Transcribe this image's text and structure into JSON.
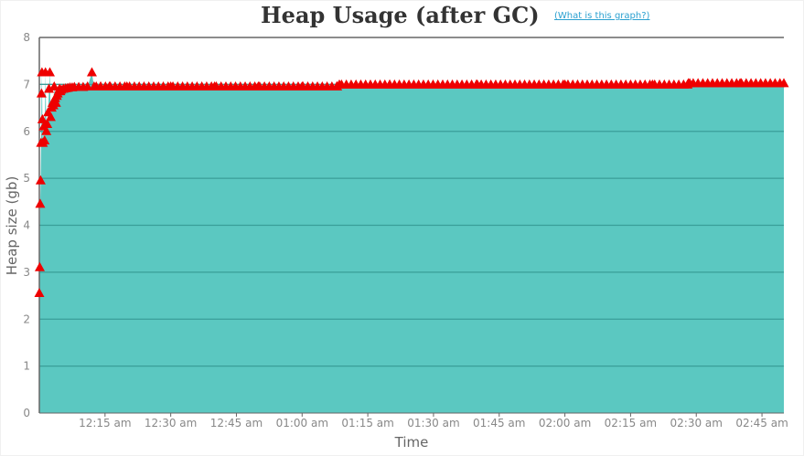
{
  "header": {
    "title": "Heap Usage (after GC)",
    "help_link": "(What is this graph?)"
  },
  "chart_data": {
    "type": "area",
    "title": "Heap Usage (after GC)",
    "xlabel": "Time",
    "ylabel": "Heap size (gb)",
    "ylim": [
      0,
      8
    ],
    "xlim_minutes": [
      0,
      170
    ],
    "y_ticks": [
      "0",
      "1",
      "2",
      "3",
      "4",
      "5",
      "6",
      "7",
      "8"
    ],
    "x_ticks": [
      {
        "minute": 15,
        "label": "12:15 am"
      },
      {
        "minute": 30,
        "label": "12:30 am"
      },
      {
        "minute": 45,
        "label": "12:45 am"
      },
      {
        "minute": 60,
        "label": "01:00 am"
      },
      {
        "minute": 75,
        "label": "01:15 am"
      },
      {
        "minute": 90,
        "label": "01:30 am"
      },
      {
        "minute": 105,
        "label": "01:45 am"
      },
      {
        "minute": 120,
        "label": "02:00 am"
      },
      {
        "minute": 135,
        "label": "02:15 am"
      },
      {
        "minute": 150,
        "label": "02:30 am"
      },
      {
        "minute": 165,
        "label": "02:45 am"
      }
    ],
    "grid": true,
    "colors": {
      "area": "#5bc8c1",
      "marker": "#ee0000",
      "grid": "#3a9e98",
      "axis": "#666666"
    },
    "series": [
      {
        "x_minutes": [
          0,
          0.1,
          0.2,
          0.3,
          0.4,
          0.5,
          0.6,
          0.7,
          0.8,
          1.0,
          1.2,
          1.4,
          1.6,
          1.8,
          2.0,
          2.2,
          2.4,
          2.6,
          2.8,
          3.0,
          3.2,
          3.4,
          3.6,
          3.8,
          4.0,
          4.2,
          4.4,
          4.6,
          4.8,
          5.0,
          5.5,
          6.0,
          6.5,
          7.0,
          7.5,
          8.0,
          9.0,
          10.0,
          11.0,
          12.0,
          12.5,
          13.0,
          14.0,
          16.0,
          20.0,
          30.0,
          40.0,
          50.0,
          60.0,
          68.0,
          68.5,
          80.0,
          100.0,
          120.0,
          140.0,
          148.0,
          148.5,
          160.0,
          170.0
        ],
        "values": [
          2.55,
          3.1,
          4.45,
          4.95,
          5.75,
          6.8,
          7.25,
          6.25,
          5.75,
          6.1,
          5.8,
          7.25,
          6.0,
          6.15,
          6.4,
          6.9,
          7.25,
          6.3,
          6.5,
          6.6,
          6.55,
          6.95,
          6.7,
          6.6,
          6.75,
          6.8,
          6.85,
          6.9,
          6.85,
          6.88,
          6.9,
          6.91,
          6.92,
          6.93,
          6.93,
          6.94,
          6.94,
          6.94,
          6.95,
          7.25,
          6.95,
          6.95,
          6.95,
          6.95,
          6.95,
          6.95,
          6.95,
          6.95,
          6.95,
          6.95,
          6.99,
          6.99,
          6.99,
          6.99,
          6.99,
          6.99,
          7.02,
          7.02,
          7.02
        ]
      }
    ]
  }
}
